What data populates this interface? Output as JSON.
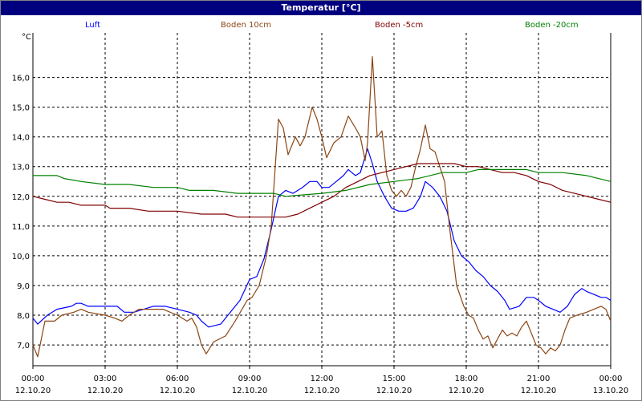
{
  "window": {
    "title": "Temperatur [°C]"
  },
  "legend": [
    {
      "name": "Luft",
      "color": "#0000ff"
    },
    {
      "name": "Boden 10cm",
      "color": "#8b4513"
    },
    {
      "name": "Boden -5cm",
      "color": "#800000"
    },
    {
      "name": "Boden -20cm",
      "color": "#008000"
    }
  ],
  "chart_data": {
    "type": "line",
    "title": "Temperatur [°C]",
    "ylabel": "°C",
    "xlabel": "",
    "grid": true,
    "legend_position": "top",
    "ylim": [
      6.3,
      17.5
    ],
    "y_ticks": [
      "7,0",
      "8,0",
      "9,0",
      "10,0",
      "11,0",
      "12,0",
      "13,0",
      "14,0",
      "15,0",
      "16,0"
    ],
    "y_tick_values": [
      7,
      8,
      9,
      10,
      11,
      12,
      13,
      14,
      15,
      16
    ],
    "xlim": [
      0,
      24
    ],
    "x_ticks": [
      {
        "x": 0,
        "time": "00:00",
        "date": "12.10.20"
      },
      {
        "x": 3,
        "time": "03:00",
        "date": "12.10.20"
      },
      {
        "x": 6,
        "time": "06:00",
        "date": "12.10.20"
      },
      {
        "x": 9,
        "time": "09:00",
        "date": "12.10.20"
      },
      {
        "x": 12,
        "time": "12:00",
        "date": "12.10.20"
      },
      {
        "x": 15,
        "time": "15:00",
        "date": "12.10.20"
      },
      {
        "x": 18,
        "time": "18:00",
        "date": "12.10.20"
      },
      {
        "x": 21,
        "time": "21:00",
        "date": "12.10.20"
      },
      {
        "x": 24,
        "time": "00:00",
        "date": "13.10.20"
      }
    ],
    "series": [
      {
        "name": "Luft",
        "color": "#0000ff",
        "points": [
          [
            0,
            7.9
          ],
          [
            0.2,
            7.7
          ],
          [
            0.6,
            8.0
          ],
          [
            1.0,
            8.2
          ],
          [
            1.6,
            8.3
          ],
          [
            1.8,
            8.4
          ],
          [
            2.0,
            8.4
          ],
          [
            2.3,
            8.3
          ],
          [
            3.0,
            8.3
          ],
          [
            3.5,
            8.3
          ],
          [
            3.8,
            8.1
          ],
          [
            4.2,
            8.1
          ],
          [
            4.6,
            8.2
          ],
          [
            5.0,
            8.3
          ],
          [
            5.5,
            8.3
          ],
          [
            6.0,
            8.2
          ],
          [
            6.5,
            8.1
          ],
          [
            6.8,
            8.0
          ],
          [
            7.0,
            7.8
          ],
          [
            7.3,
            7.6
          ],
          [
            7.8,
            7.7
          ],
          [
            8.1,
            8.0
          ],
          [
            8.6,
            8.5
          ],
          [
            9.0,
            9.2
          ],
          [
            9.3,
            9.3
          ],
          [
            9.6,
            9.9
          ],
          [
            9.9,
            10.9
          ],
          [
            10.2,
            12.0
          ],
          [
            10.5,
            12.2
          ],
          [
            10.8,
            12.1
          ],
          [
            11.2,
            12.3
          ],
          [
            11.5,
            12.5
          ],
          [
            11.8,
            12.5
          ],
          [
            12.0,
            12.3
          ],
          [
            12.3,
            12.3
          ],
          [
            12.6,
            12.5
          ],
          [
            12.9,
            12.7
          ],
          [
            13.1,
            12.9
          ],
          [
            13.4,
            12.7
          ],
          [
            13.6,
            12.8
          ],
          [
            13.9,
            13.6
          ],
          [
            14.1,
            13.1
          ],
          [
            14.3,
            12.5
          ],
          [
            14.6,
            12.0
          ],
          [
            14.9,
            11.6
          ],
          [
            15.2,
            11.5
          ],
          [
            15.5,
            11.5
          ],
          [
            15.8,
            11.6
          ],
          [
            16.1,
            12.0
          ],
          [
            16.3,
            12.5
          ],
          [
            16.6,
            12.3
          ],
          [
            16.9,
            12.0
          ],
          [
            17.2,
            11.5
          ],
          [
            17.5,
            10.5
          ],
          [
            17.8,
            10.0
          ],
          [
            18.1,
            9.8
          ],
          [
            18.4,
            9.5
          ],
          [
            18.7,
            9.3
          ],
          [
            19.0,
            9.0
          ],
          [
            19.3,
            8.8
          ],
          [
            19.6,
            8.5
          ],
          [
            19.8,
            8.2
          ],
          [
            20.2,
            8.3
          ],
          [
            20.5,
            8.6
          ],
          [
            20.8,
            8.6
          ],
          [
            21.0,
            8.5
          ],
          [
            21.3,
            8.3
          ],
          [
            21.6,
            8.2
          ],
          [
            21.9,
            8.1
          ],
          [
            22.2,
            8.3
          ],
          [
            22.5,
            8.7
          ],
          [
            22.8,
            8.9
          ],
          [
            23.0,
            8.8
          ],
          [
            23.3,
            8.7
          ],
          [
            23.6,
            8.6
          ],
          [
            23.8,
            8.6
          ],
          [
            24.0,
            8.5
          ]
        ]
      },
      {
        "name": "Boden 10cm",
        "color": "#8b4513",
        "points": [
          [
            0,
            7.0
          ],
          [
            0.2,
            6.6
          ],
          [
            0.5,
            7.8
          ],
          [
            0.9,
            7.8
          ],
          [
            1.2,
            8.0
          ],
          [
            1.7,
            8.1
          ],
          [
            2.0,
            8.2
          ],
          [
            2.3,
            8.1
          ],
          [
            3.0,
            8.0
          ],
          [
            3.4,
            7.9
          ],
          [
            3.7,
            7.8
          ],
          [
            4.0,
            8.0
          ],
          [
            4.4,
            8.2
          ],
          [
            5.0,
            8.2
          ],
          [
            5.4,
            8.2
          ],
          [
            6.0,
            8.0
          ],
          [
            6.4,
            7.8
          ],
          [
            6.6,
            7.9
          ],
          [
            6.8,
            7.6
          ],
          [
            7.0,
            7.0
          ],
          [
            7.2,
            6.7
          ],
          [
            7.5,
            7.1
          ],
          [
            8.0,
            7.3
          ],
          [
            8.4,
            7.8
          ],
          [
            8.9,
            8.5
          ],
          [
            9.1,
            8.6
          ],
          [
            9.4,
            9.0
          ],
          [
            9.7,
            10.0
          ],
          [
            9.9,
            11.0
          ],
          [
            10.2,
            14.6
          ],
          [
            10.4,
            14.3
          ],
          [
            10.6,
            13.4
          ],
          [
            10.9,
            14.0
          ],
          [
            11.1,
            13.7
          ],
          [
            11.3,
            14.0
          ],
          [
            11.6,
            15.0
          ],
          [
            11.8,
            14.6
          ],
          [
            12.0,
            14.0
          ],
          [
            12.2,
            13.3
          ],
          [
            12.5,
            13.8
          ],
          [
            12.8,
            14.0
          ],
          [
            13.1,
            14.7
          ],
          [
            13.4,
            14.3
          ],
          [
            13.6,
            14.0
          ],
          [
            13.8,
            13.2
          ],
          [
            13.9,
            13.8
          ],
          [
            14.1,
            16.7
          ],
          [
            14.3,
            14.0
          ],
          [
            14.5,
            14.2
          ],
          [
            14.7,
            12.7
          ],
          [
            14.9,
            12.2
          ],
          [
            15.1,
            12.0
          ],
          [
            15.3,
            12.2
          ],
          [
            15.5,
            12.0
          ],
          [
            15.7,
            12.3
          ],
          [
            15.9,
            13.0
          ],
          [
            16.1,
            13.6
          ],
          [
            16.3,
            14.4
          ],
          [
            16.5,
            13.6
          ],
          [
            16.7,
            13.5
          ],
          [
            16.9,
            13.0
          ],
          [
            17.1,
            12.5
          ],
          [
            17.3,
            11.0
          ],
          [
            17.6,
            9.0
          ],
          [
            17.9,
            8.3
          ],
          [
            18.1,
            8.0
          ],
          [
            18.3,
            7.9
          ],
          [
            18.5,
            7.5
          ],
          [
            18.7,
            7.2
          ],
          [
            18.9,
            7.3
          ],
          [
            19.1,
            6.9
          ],
          [
            19.3,
            7.2
          ],
          [
            19.5,
            7.5
          ],
          [
            19.7,
            7.3
          ],
          [
            19.9,
            7.4
          ],
          [
            20.1,
            7.3
          ],
          [
            20.3,
            7.6
          ],
          [
            20.5,
            7.8
          ],
          [
            20.7,
            7.4
          ],
          [
            20.9,
            7.0
          ],
          [
            21.1,
            6.9
          ],
          [
            21.3,
            6.7
          ],
          [
            21.5,
            6.9
          ],
          [
            21.7,
            6.8
          ],
          [
            21.9,
            7.0
          ],
          [
            22.1,
            7.5
          ],
          [
            22.3,
            7.9
          ],
          [
            22.6,
            8.0
          ],
          [
            23.0,
            8.1
          ],
          [
            23.3,
            8.2
          ],
          [
            23.6,
            8.3
          ],
          [
            23.8,
            8.2
          ],
          [
            24.0,
            7.8
          ]
        ]
      },
      {
        "name": "Boden -5cm",
        "color": "#800000",
        "points": [
          [
            0,
            12.0
          ],
          [
            0.5,
            11.9
          ],
          [
            1.0,
            11.8
          ],
          [
            1.5,
            11.8
          ],
          [
            2.0,
            11.7
          ],
          [
            3.0,
            11.7
          ],
          [
            3.2,
            11.6
          ],
          [
            4.0,
            11.6
          ],
          [
            4.8,
            11.5
          ],
          [
            6.0,
            11.5
          ],
          [
            7.0,
            11.4
          ],
          [
            8.0,
            11.4
          ],
          [
            8.5,
            11.3
          ],
          [
            9.5,
            11.3
          ],
          [
            10.5,
            11.3
          ],
          [
            11.0,
            11.4
          ],
          [
            11.5,
            11.6
          ],
          [
            12.0,
            11.8
          ],
          [
            12.5,
            12.0
          ],
          [
            13.0,
            12.3
          ],
          [
            13.5,
            12.5
          ],
          [
            14.0,
            12.7
          ],
          [
            14.5,
            12.8
          ],
          [
            15.0,
            12.9
          ],
          [
            15.5,
            13.0
          ],
          [
            16.0,
            13.1
          ],
          [
            17.0,
            13.1
          ],
          [
            17.5,
            13.1
          ],
          [
            18.0,
            13.0
          ],
          [
            18.5,
            13.0
          ],
          [
            19.0,
            12.9
          ],
          [
            19.5,
            12.8
          ],
          [
            20.0,
            12.8
          ],
          [
            20.5,
            12.7
          ],
          [
            21.0,
            12.5
          ],
          [
            21.5,
            12.4
          ],
          [
            22.0,
            12.2
          ],
          [
            22.5,
            12.1
          ],
          [
            23.0,
            12.0
          ],
          [
            23.5,
            11.9
          ],
          [
            24.0,
            11.8
          ]
        ]
      },
      {
        "name": "Boden -20cm",
        "color": "#008000",
        "points": [
          [
            0,
            12.7
          ],
          [
            1.0,
            12.7
          ],
          [
            1.3,
            12.6
          ],
          [
            2.0,
            12.5
          ],
          [
            3.0,
            12.4
          ],
          [
            4.0,
            12.4
          ],
          [
            5.0,
            12.3
          ],
          [
            6.0,
            12.3
          ],
          [
            6.5,
            12.2
          ],
          [
            7.5,
            12.2
          ],
          [
            8.5,
            12.1
          ],
          [
            10.0,
            12.1
          ],
          [
            10.5,
            12.0
          ],
          [
            12.0,
            12.1
          ],
          [
            13.0,
            12.2
          ],
          [
            14.0,
            12.4
          ],
          [
            15.0,
            12.5
          ],
          [
            16.0,
            12.6
          ],
          [
            16.5,
            12.7
          ],
          [
            17.0,
            12.8
          ],
          [
            18.0,
            12.8
          ],
          [
            18.5,
            12.9
          ],
          [
            19.5,
            12.9
          ],
          [
            20.5,
            12.9
          ],
          [
            21.0,
            12.8
          ],
          [
            22.0,
            12.8
          ],
          [
            23.0,
            12.7
          ],
          [
            24.0,
            12.5
          ]
        ]
      }
    ]
  }
}
